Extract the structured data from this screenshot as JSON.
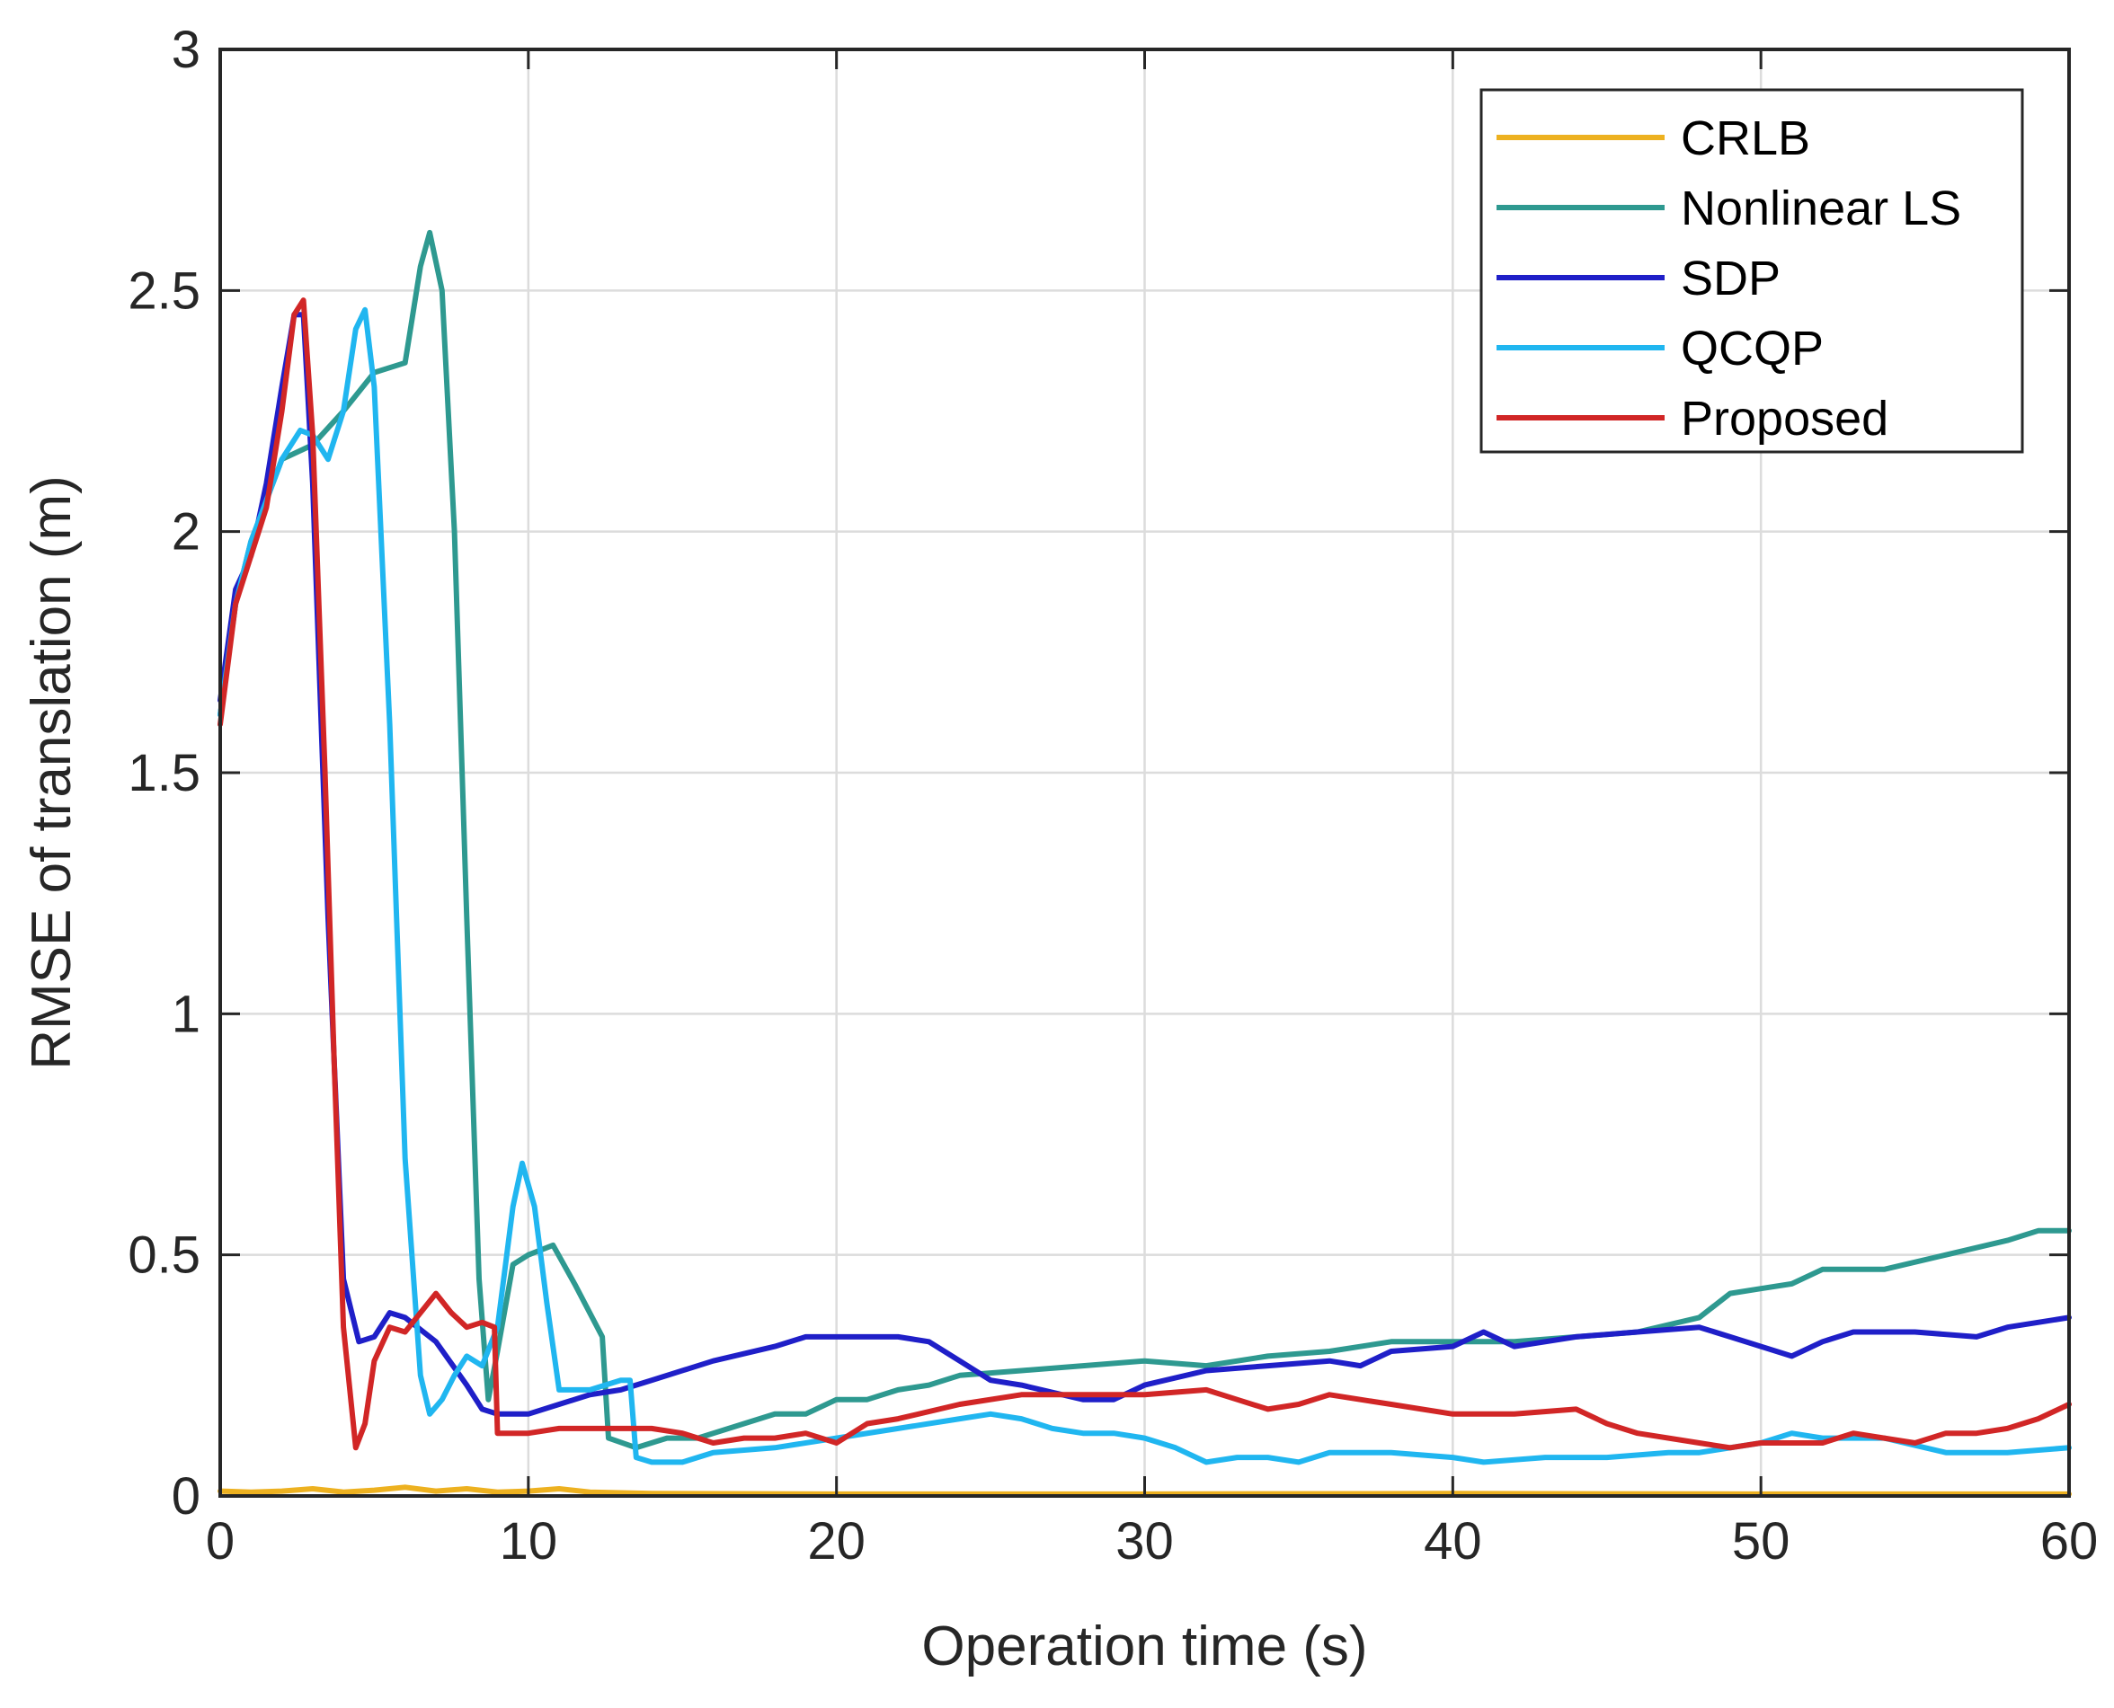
{
  "chart_data": {
    "type": "line",
    "title": "",
    "xlabel": "Operation time (s)",
    "ylabel": "RMSE of translation (m)",
    "xlim": [
      0,
      60
    ],
    "ylim": [
      0,
      3
    ],
    "xticks": [
      0,
      10,
      20,
      30,
      40,
      50,
      60
    ],
    "yticks": [
      0,
      0.5,
      1,
      1.5,
      2,
      2.5,
      3
    ],
    "xtick_labels": [
      "0",
      "10",
      "20",
      "30",
      "40",
      "50",
      "60"
    ],
    "ytick_labels": [
      "0",
      "0.5",
      "1",
      "1.5",
      "2",
      "2.5",
      "3"
    ],
    "grid": true,
    "legend_position": "top-right",
    "series": [
      {
        "name": "CRLB",
        "color": "#edb120",
        "points": [
          [
            0,
            0.01
          ],
          [
            1,
            0.008
          ],
          [
            2,
            0.01
          ],
          [
            3,
            0.015
          ],
          [
            4,
            0.008
          ],
          [
            5,
            0.012
          ],
          [
            6,
            0.018
          ],
          [
            7,
            0.01
          ],
          [
            8,
            0.015
          ],
          [
            9,
            0.008
          ],
          [
            10,
            0.01
          ],
          [
            11,
            0.015
          ],
          [
            12,
            0.008
          ],
          [
            14,
            0.005
          ],
          [
            20,
            0.004
          ],
          [
            30,
            0.004
          ],
          [
            40,
            0.005
          ],
          [
            50,
            0.004
          ],
          [
            60,
            0.004
          ]
        ]
      },
      {
        "name": "Nonlinear LS",
        "color": "#2e9990",
        "points": [
          [
            0,
            1.62
          ],
          [
            0.5,
            1.85
          ],
          [
            1,
            1.98
          ],
          [
            2,
            2.15
          ],
          [
            3,
            2.18
          ],
          [
            4,
            2.25
          ],
          [
            5,
            2.33
          ],
          [
            6,
            2.35
          ],
          [
            6.5,
            2.55
          ],
          [
            6.8,
            2.62
          ],
          [
            7.2,
            2.5
          ],
          [
            7.6,
            2.0
          ],
          [
            8,
            1.2
          ],
          [
            8.4,
            0.45
          ],
          [
            8.7,
            0.2
          ],
          [
            9,
            0.3
          ],
          [
            9.5,
            0.48
          ],
          [
            10,
            0.5
          ],
          [
            10.8,
            0.52
          ],
          [
            11.5,
            0.44
          ],
          [
            12.4,
            0.33
          ],
          [
            12.6,
            0.12
          ],
          [
            13.5,
            0.1
          ],
          [
            14.5,
            0.12
          ],
          [
            15.5,
            0.12
          ],
          [
            17,
            0.15
          ],
          [
            18,
            0.17
          ],
          [
            19,
            0.17
          ],
          [
            20,
            0.2
          ],
          [
            21,
            0.2
          ],
          [
            22,
            0.22
          ],
          [
            23,
            0.23
          ],
          [
            24,
            0.25
          ],
          [
            26,
            0.26
          ],
          [
            28,
            0.27
          ],
          [
            30,
            0.28
          ],
          [
            32,
            0.27
          ],
          [
            34,
            0.29
          ],
          [
            36,
            0.3
          ],
          [
            38,
            0.32
          ],
          [
            40,
            0.32
          ],
          [
            42,
            0.32
          ],
          [
            44,
            0.33
          ],
          [
            46,
            0.34
          ],
          [
            48,
            0.37
          ],
          [
            49,
            0.42
          ],
          [
            50,
            0.43
          ],
          [
            51,
            0.44
          ],
          [
            52,
            0.47
          ],
          [
            54,
            0.47
          ],
          [
            56,
            0.5
          ],
          [
            58,
            0.53
          ],
          [
            59,
            0.55
          ],
          [
            60,
            0.55
          ]
        ]
      },
      {
        "name": "SDP",
        "color": "#1f1fc8",
        "points": [
          [
            0,
            1.65
          ],
          [
            0.5,
            1.88
          ],
          [
            1,
            1.95
          ],
          [
            1.5,
            2.1
          ],
          [
            2,
            2.3
          ],
          [
            2.4,
            2.45
          ],
          [
            2.7,
            2.45
          ],
          [
            3.0,
            2.1
          ],
          [
            3.5,
            1.2
          ],
          [
            4,
            0.45
          ],
          [
            4.5,
            0.32
          ],
          [
            5,
            0.33
          ],
          [
            5.5,
            0.38
          ],
          [
            6,
            0.37
          ],
          [
            7,
            0.32
          ],
          [
            8,
            0.23
          ],
          [
            8.5,
            0.18
          ],
          [
            9,
            0.17
          ],
          [
            10,
            0.17
          ],
          [
            11,
            0.19
          ],
          [
            12,
            0.21
          ],
          [
            13,
            0.22
          ],
          [
            14,
            0.24
          ],
          [
            16,
            0.28
          ],
          [
            18,
            0.31
          ],
          [
            19,
            0.33
          ],
          [
            20,
            0.33
          ],
          [
            21,
            0.33
          ],
          [
            22,
            0.33
          ],
          [
            23,
            0.32
          ],
          [
            24,
            0.28
          ],
          [
            25,
            0.24
          ],
          [
            26,
            0.23
          ],
          [
            28,
            0.2
          ],
          [
            29,
            0.2
          ],
          [
            30,
            0.23
          ],
          [
            32,
            0.26
          ],
          [
            34,
            0.27
          ],
          [
            36,
            0.28
          ],
          [
            37,
            0.27
          ],
          [
            38,
            0.3
          ],
          [
            40,
            0.31
          ],
          [
            41,
            0.34
          ],
          [
            42,
            0.31
          ],
          [
            43,
            0.32
          ],
          [
            44,
            0.33
          ],
          [
            46,
            0.34
          ],
          [
            48,
            0.35
          ],
          [
            49,
            0.33
          ],
          [
            50,
            0.31
          ],
          [
            51,
            0.29
          ],
          [
            52,
            0.32
          ],
          [
            53,
            0.34
          ],
          [
            55,
            0.34
          ],
          [
            57,
            0.33
          ],
          [
            58,
            0.35
          ],
          [
            60,
            0.37
          ]
        ]
      },
      {
        "name": "QCQP",
        "color": "#20b6f0",
        "points": [
          [
            0,
            1.62
          ],
          [
            0.5,
            1.85
          ],
          [
            1,
            1.98
          ],
          [
            2,
            2.15
          ],
          [
            2.6,
            2.21
          ],
          [
            3.0,
            2.2
          ],
          [
            3.5,
            2.15
          ],
          [
            4,
            2.25
          ],
          [
            4.4,
            2.42
          ],
          [
            4.7,
            2.46
          ],
          [
            5,
            2.3
          ],
          [
            5.5,
            1.6
          ],
          [
            6,
            0.7
          ],
          [
            6.5,
            0.25
          ],
          [
            6.8,
            0.17
          ],
          [
            7.2,
            0.2
          ],
          [
            7.6,
            0.25
          ],
          [
            8,
            0.29
          ],
          [
            8.5,
            0.27
          ],
          [
            9,
            0.35
          ],
          [
            9.5,
            0.6
          ],
          [
            9.8,
            0.69
          ],
          [
            10.2,
            0.6
          ],
          [
            10.6,
            0.4
          ],
          [
            11,
            0.22
          ],
          [
            12,
            0.22
          ],
          [
            13,
            0.24
          ],
          [
            13.3,
            0.24
          ],
          [
            13.5,
            0.08
          ],
          [
            14,
            0.07
          ],
          [
            15,
            0.07
          ],
          [
            16,
            0.09
          ],
          [
            18,
            0.1
          ],
          [
            20,
            0.12
          ],
          [
            22,
            0.14
          ],
          [
            24,
            0.16
          ],
          [
            25,
            0.17
          ],
          [
            26,
            0.16
          ],
          [
            27,
            0.14
          ],
          [
            28,
            0.13
          ],
          [
            29,
            0.13
          ],
          [
            30,
            0.12
          ],
          [
            31,
            0.1
          ],
          [
            32,
            0.07
          ],
          [
            33,
            0.08
          ],
          [
            34,
            0.08
          ],
          [
            35,
            0.07
          ],
          [
            36,
            0.09
          ],
          [
            38,
            0.09
          ],
          [
            40,
            0.08
          ],
          [
            41,
            0.07
          ],
          [
            43,
            0.08
          ],
          [
            45,
            0.08
          ],
          [
            47,
            0.09
          ],
          [
            48,
            0.09
          ],
          [
            50,
            0.11
          ],
          [
            51,
            0.13
          ],
          [
            52,
            0.12
          ],
          [
            54,
            0.12
          ],
          [
            56,
            0.09
          ],
          [
            58,
            0.09
          ],
          [
            60,
            0.1
          ]
        ]
      },
      {
        "name": "Proposed",
        "color": "#d12626",
        "points": [
          [
            0,
            1.6
          ],
          [
            0.5,
            1.85
          ],
          [
            1,
            1.95
          ],
          [
            1.5,
            2.05
          ],
          [
            2,
            2.25
          ],
          [
            2.4,
            2.45
          ],
          [
            2.7,
            2.48
          ],
          [
            3.0,
            2.2
          ],
          [
            3.4,
            1.5
          ],
          [
            3.7,
            0.9
          ],
          [
            4,
            0.35
          ],
          [
            4.4,
            0.1
          ],
          [
            4.7,
            0.15
          ],
          [
            5,
            0.28
          ],
          [
            5.5,
            0.35
          ],
          [
            6,
            0.34
          ],
          [
            6.5,
            0.38
          ],
          [
            7,
            0.42
          ],
          [
            7.5,
            0.38
          ],
          [
            8,
            0.35
          ],
          [
            8.5,
            0.36
          ],
          [
            8.9,
            0.35
          ],
          [
            9,
            0.13
          ],
          [
            10,
            0.13
          ],
          [
            11,
            0.14
          ],
          [
            12,
            0.14
          ],
          [
            13,
            0.14
          ],
          [
            14,
            0.14
          ],
          [
            15,
            0.13
          ],
          [
            16,
            0.11
          ],
          [
            17,
            0.12
          ],
          [
            18,
            0.12
          ],
          [
            19,
            0.13
          ],
          [
            20,
            0.11
          ],
          [
            21,
            0.15
          ],
          [
            22,
            0.16
          ],
          [
            24,
            0.19
          ],
          [
            26,
            0.21
          ],
          [
            28,
            0.21
          ],
          [
            30,
            0.21
          ],
          [
            32,
            0.22
          ],
          [
            33,
            0.2
          ],
          [
            34,
            0.18
          ],
          [
            35,
            0.19
          ],
          [
            36,
            0.21
          ],
          [
            37,
            0.2
          ],
          [
            38,
            0.19
          ],
          [
            40,
            0.17
          ],
          [
            42,
            0.17
          ],
          [
            44,
            0.18
          ],
          [
            45,
            0.15
          ],
          [
            46,
            0.13
          ],
          [
            48,
            0.11
          ],
          [
            49,
            0.1
          ],
          [
            50,
            0.11
          ],
          [
            52,
            0.11
          ],
          [
            53,
            0.13
          ],
          [
            54,
            0.12
          ],
          [
            55,
            0.11
          ],
          [
            56,
            0.13
          ],
          [
            57,
            0.13
          ],
          [
            58,
            0.14
          ],
          [
            59,
            0.16
          ],
          [
            60,
            0.19
          ]
        ]
      }
    ]
  }
}
